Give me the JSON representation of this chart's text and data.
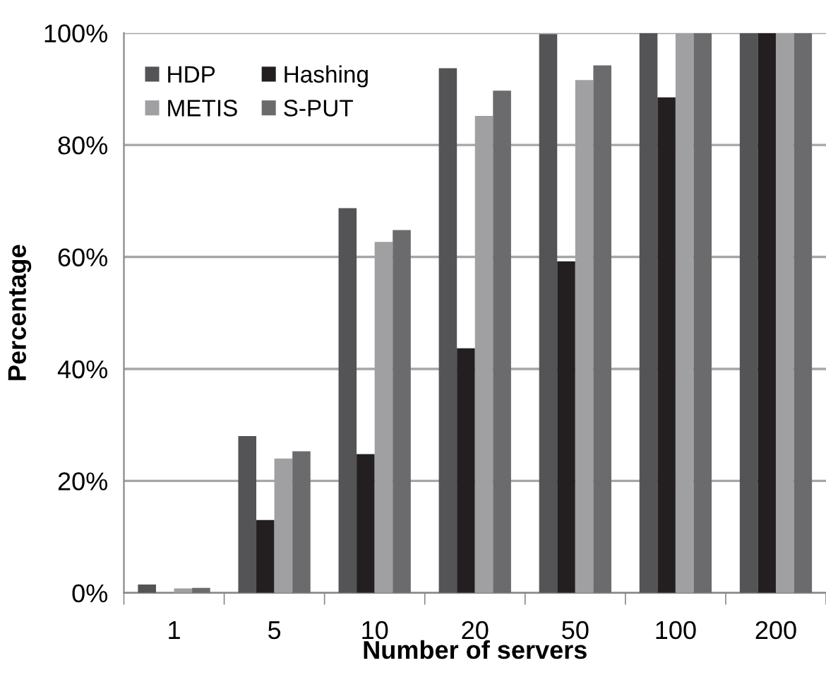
{
  "chart_data": {
    "type": "bar",
    "xlabel": "Number of servers",
    "ylabel": "Percentage",
    "categories": [
      "1",
      "5",
      "10",
      "20",
      "50",
      "100",
      "200"
    ],
    "series": [
      {
        "name": "HDP",
        "color": "#545456",
        "values": [
          1.5,
          28,
          68.7,
          93.7,
          99.8,
          100,
          100
        ]
      },
      {
        "name": "Hashing",
        "color": "#231f20",
        "values": [
          0,
          13,
          24.8,
          43.7,
          59.2,
          88.5,
          100
        ]
      },
      {
        "name": "METIS",
        "color": "#a0a0a2",
        "values": [
          0.8,
          24,
          62.7,
          85.2,
          91.6,
          100,
          100
        ]
      },
      {
        "name": "S-PUT",
        "color": "#6b6b6d",
        "values": [
          0.9,
          25.3,
          64.8,
          89.7,
          94.2,
          100,
          100
        ]
      }
    ],
    "ylim": [
      0,
      100
    ],
    "yticks": [
      {
        "value": 0,
        "label": "0%"
      },
      {
        "value": 20,
        "label": "20%"
      },
      {
        "value": 40,
        "label": "40%"
      },
      {
        "value": 60,
        "label": "60%"
      },
      {
        "value": 80,
        "label": "80%"
      },
      {
        "value": 100,
        "label": "100%"
      }
    ],
    "grid": "y",
    "legend": "top left"
  }
}
